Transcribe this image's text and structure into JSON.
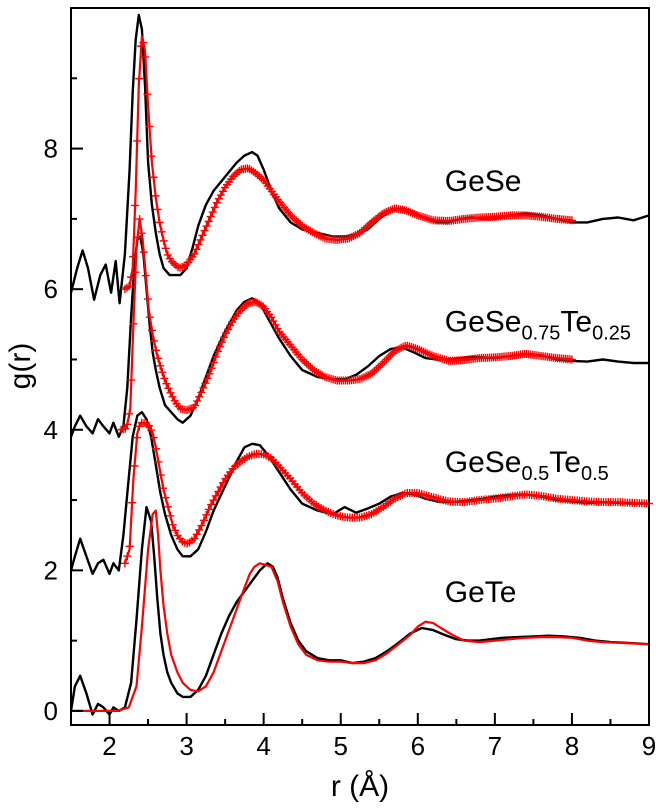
{
  "chart_data": {
    "type": "line",
    "xlabel": "r (Å)",
    "ylabel": "g(r)",
    "xlim": [
      1.5,
      9
    ],
    "ylim": [
      -0.2,
      10
    ],
    "xticks": [
      2,
      3,
      4,
      5,
      6,
      7,
      8,
      9
    ],
    "xtick_labels": [
      "2",
      "3",
      "4",
      "5",
      "6",
      "7",
      "8",
      "9"
    ],
    "yticks": [
      0,
      2,
      4,
      6,
      8
    ],
    "ytick_labels": [
      "0",
      "2",
      "4",
      "6",
      "8"
    ],
    "grid": false,
    "colors": {
      "black_curve": "#000000",
      "red_curve": "#ff0000"
    },
    "annotations": [
      {
        "parts": [
          {
            "t": "GeSe"
          }
        ],
        "x": 6.35,
        "y": 7.4
      },
      {
        "parts": [
          {
            "t": "GeSe"
          },
          {
            "t": "0.75",
            "sub": true
          },
          {
            "t": "Te"
          },
          {
            "t": "0.25",
            "sub": true
          }
        ],
        "x": 6.35,
        "y": 5.4
      },
      {
        "parts": [
          {
            "t": "GeSe"
          },
          {
            "t": "0.5",
            "sub": true
          },
          {
            "t": "Te"
          },
          {
            "t": "0.5",
            "sub": true
          }
        ],
        "x": 6.35,
        "y": 3.4
      },
      {
        "parts": [
          {
            "t": "GeTe"
          }
        ],
        "x": 6.35,
        "y": 1.55
      }
    ],
    "series": [
      {
        "group": "GeSe",
        "color": "#000000",
        "marker": "none",
        "x": [
          1.5,
          1.58,
          1.65,
          1.72,
          1.8,
          1.88,
          1.95,
          2.02,
          2.08,
          2.13,
          2.2,
          2.26,
          2.3,
          2.34,
          2.38,
          2.42,
          2.46,
          2.5,
          2.55,
          2.6,
          2.65,
          2.7,
          2.78,
          2.85,
          2.92,
          3.0,
          3.08,
          3.15,
          3.25,
          3.35,
          3.5,
          3.65,
          3.75,
          3.85,
          3.92,
          4.0,
          4.1,
          4.2,
          4.35,
          4.5,
          4.7,
          4.9,
          5.05,
          5.2,
          5.35,
          5.5,
          5.65,
          5.8,
          5.95,
          6.1,
          6.25,
          6.4,
          6.55,
          6.7,
          6.85,
          7.0,
          7.2,
          7.4,
          7.6,
          7.8,
          8.0,
          8.2,
          8.4,
          8.6,
          8.8,
          9.0
        ],
        "y": [
          5.95,
          6.3,
          6.55,
          6.3,
          5.85,
          6.2,
          6.35,
          5.95,
          6.4,
          5.8,
          6.5,
          7.7,
          8.8,
          9.55,
          9.9,
          9.7,
          8.9,
          7.8,
          7.2,
          6.8,
          6.5,
          6.3,
          6.2,
          6.2,
          6.2,
          6.3,
          6.6,
          6.9,
          7.2,
          7.4,
          7.6,
          7.8,
          7.9,
          7.95,
          7.9,
          7.7,
          7.4,
          7.15,
          6.95,
          6.85,
          6.8,
          6.75,
          6.75,
          6.78,
          6.85,
          7.0,
          7.12,
          7.15,
          7.1,
          7.0,
          6.95,
          6.95,
          7.0,
          7.02,
          7.0,
          7.0,
          7.05,
          7.08,
          7.05,
          7.0,
          6.95,
          6.95,
          7.0,
          7.02,
          6.98,
          7.05
        ]
      },
      {
        "group": "GeSe",
        "color": "#ff0000",
        "marker": "plus",
        "x": [
          2.2,
          2.26,
          2.3,
          2.34,
          2.38,
          2.42,
          2.46,
          2.5,
          2.55,
          2.6,
          2.65,
          2.7,
          2.75,
          2.8,
          2.85,
          2.9,
          2.95,
          3.0,
          3.1,
          3.2,
          3.3,
          3.4,
          3.5,
          3.6,
          3.7,
          3.8,
          3.9,
          4.0,
          4.1,
          4.2,
          4.35,
          4.5,
          4.65,
          4.8,
          4.95,
          5.1,
          5.25,
          5.4,
          5.55,
          5.7,
          5.85,
          6.0,
          6.2,
          6.4,
          6.6,
          6.8,
          7.0,
          7.2,
          7.4,
          7.6,
          7.8,
          8.0
        ],
        "y": [
          6.0,
          6.05,
          6.3,
          7.4,
          8.9,
          9.6,
          9.4,
          8.6,
          7.8,
          7.3,
          6.95,
          6.7,
          6.5,
          6.4,
          6.35,
          6.3,
          6.32,
          6.35,
          6.5,
          6.75,
          7.0,
          7.25,
          7.45,
          7.6,
          7.7,
          7.72,
          7.65,
          7.55,
          7.4,
          7.25,
          7.05,
          6.9,
          6.8,
          6.72,
          6.7,
          6.72,
          6.8,
          6.95,
          7.08,
          7.15,
          7.12,
          7.05,
          6.98,
          6.97,
          7.0,
          7.02,
          7.03,
          7.05,
          7.05,
          7.03,
          7.0,
          6.98
        ]
      },
      {
        "group": "GeSe0.75Te0.25",
        "color": "#000000",
        "marker": "none",
        "x": [
          1.5,
          1.55,
          1.62,
          1.7,
          1.78,
          1.85,
          1.92,
          2.0,
          2.05,
          2.12,
          2.18,
          2.23,
          2.28,
          2.32,
          2.36,
          2.4,
          2.44,
          2.48,
          2.52,
          2.56,
          2.6,
          2.65,
          2.72,
          2.8,
          2.88,
          2.95,
          3.05,
          3.15,
          3.25,
          3.35,
          3.5,
          3.65,
          3.75,
          3.85,
          3.95,
          4.05,
          4.2,
          4.35,
          4.5,
          4.7,
          4.9,
          5.05,
          5.2,
          5.35,
          5.5,
          5.65,
          5.8,
          5.95,
          6.1,
          6.25,
          6.4,
          6.55,
          6.7,
          6.85,
          7.0,
          7.2,
          7.4,
          7.6,
          7.8,
          8.0,
          8.2,
          8.4,
          8.6,
          8.8,
          9.0
        ],
        "y": [
          3.9,
          4.05,
          4.2,
          4.05,
          3.95,
          4.15,
          4.05,
          3.95,
          4.1,
          3.9,
          4.05,
          4.6,
          5.6,
          6.3,
          6.7,
          6.75,
          6.5,
          6.0,
          5.5,
          5.1,
          4.85,
          4.6,
          4.35,
          4.25,
          4.15,
          4.1,
          4.2,
          4.45,
          4.75,
          5.05,
          5.4,
          5.7,
          5.82,
          5.87,
          5.8,
          5.6,
          5.3,
          5.05,
          4.85,
          4.75,
          4.72,
          4.72,
          4.78,
          4.9,
          5.05,
          5.15,
          5.17,
          5.1,
          5.02,
          5.0,
          5.0,
          5.02,
          5.04,
          5.03,
          5.02,
          5.05,
          5.08,
          5.06,
          5.0,
          4.98,
          4.97,
          5.0,
          4.97,
          4.95,
          4.95
        ]
      },
      {
        "group": "GeSe0.75Te0.25",
        "color": "#ff0000",
        "marker": "plus",
        "x": [
          2.15,
          2.22,
          2.27,
          2.31,
          2.35,
          2.39,
          2.43,
          2.47,
          2.51,
          2.56,
          2.61,
          2.66,
          2.72,
          2.78,
          2.85,
          2.92,
          3.0,
          3.1,
          3.2,
          3.3,
          3.4,
          3.5,
          3.6,
          3.7,
          3.8,
          3.9,
          4.0,
          4.1,
          4.2,
          4.35,
          4.5,
          4.65,
          4.8,
          4.95,
          5.1,
          5.25,
          5.4,
          5.55,
          5.7,
          5.85,
          6.0,
          6.2,
          6.4,
          6.6,
          6.8,
          7.0,
          7.2,
          7.4,
          7.6,
          7.8,
          8.0
        ],
        "y": [
          4.0,
          4.02,
          4.3,
          5.5,
          6.6,
          7.0,
          6.7,
          6.2,
          5.7,
          5.35,
          5.1,
          4.9,
          4.7,
          4.55,
          4.4,
          4.3,
          4.28,
          4.32,
          4.55,
          4.8,
          5.1,
          5.35,
          5.55,
          5.7,
          5.8,
          5.82,
          5.75,
          5.6,
          5.4,
          5.2,
          5.0,
          4.85,
          4.75,
          4.7,
          4.7,
          4.72,
          4.8,
          4.95,
          5.12,
          5.2,
          5.15,
          5.05,
          4.98,
          4.99,
          5.02,
          5.03,
          5.05,
          5.08,
          5.05,
          5.02,
          5.0
        ]
      },
      {
        "group": "GeSe0.5Te0.5",
        "color": "#000000",
        "marker": "none",
        "x": [
          1.5,
          1.55,
          1.62,
          1.7,
          1.78,
          1.85,
          1.92,
          2.0,
          2.05,
          2.12,
          2.18,
          2.24,
          2.3,
          2.36,
          2.42,
          2.48,
          2.54,
          2.6,
          2.66,
          2.72,
          2.8,
          2.88,
          2.95,
          3.05,
          3.15,
          3.25,
          3.35,
          3.5,
          3.65,
          3.75,
          3.85,
          3.95,
          4.05,
          4.2,
          4.35,
          4.5,
          4.7,
          4.9,
          5.05,
          5.2,
          5.35,
          5.5,
          5.65,
          5.8,
          5.95,
          6.1,
          6.25,
          6.4,
          6.55,
          6.7,
          6.85,
          7.0,
          7.2,
          7.4,
          7.6,
          7.8,
          8.0,
          8.2,
          8.4,
          8.6,
          8.8,
          9.0
        ],
        "y": [
          2.0,
          2.2,
          2.45,
          2.2,
          1.95,
          2.1,
          2.15,
          1.95,
          2.1,
          2.0,
          2.5,
          3.2,
          3.9,
          4.2,
          4.25,
          4.15,
          3.9,
          3.5,
          3.1,
          2.8,
          2.5,
          2.3,
          2.2,
          2.2,
          2.3,
          2.55,
          2.85,
          3.2,
          3.55,
          3.75,
          3.8,
          3.78,
          3.65,
          3.4,
          3.15,
          2.95,
          2.85,
          2.8,
          2.9,
          2.82,
          2.88,
          2.95,
          3.05,
          3.1,
          3.08,
          3.02,
          2.98,
          2.97,
          2.98,
          3.0,
          3.02,
          3.05,
          3.07,
          3.08,
          3.05,
          3.0,
          2.98,
          2.96,
          2.97,
          2.96,
          2.95,
          2.95
        ]
      },
      {
        "group": "GeSe0.5Te0.5",
        "color": "#ff0000",
        "marker": "plus",
        "x": [
          2.2,
          2.26,
          2.31,
          2.36,
          2.4,
          2.44,
          2.48,
          2.52,
          2.56,
          2.6,
          2.65,
          2.7,
          2.76,
          2.82,
          2.88,
          2.95,
          3.02,
          3.1,
          3.2,
          3.3,
          3.4,
          3.5,
          3.6,
          3.7,
          3.8,
          3.9,
          4.0,
          4.1,
          4.2,
          4.35,
          4.5,
          4.65,
          4.8,
          4.95,
          5.1,
          5.25,
          5.4,
          5.55,
          5.7,
          5.85,
          6.0,
          6.2,
          6.4,
          6.6,
          6.8,
          7.0,
          7.2,
          7.4,
          7.6,
          7.8,
          8.0,
          8.2,
          8.4,
          8.6,
          8.8,
          9.0
        ],
        "y": [
          2.1,
          2.3,
          3.3,
          3.95,
          4.1,
          4.1,
          4.08,
          4.05,
          3.95,
          3.75,
          3.45,
          3.15,
          2.9,
          2.65,
          2.5,
          2.4,
          2.38,
          2.45,
          2.65,
          2.9,
          3.1,
          3.3,
          3.45,
          3.55,
          3.62,
          3.66,
          3.65,
          3.6,
          3.48,
          3.3,
          3.1,
          2.95,
          2.85,
          2.78,
          2.75,
          2.75,
          2.8,
          2.9,
          3.02,
          3.1,
          3.1,
          3.04,
          2.98,
          2.97,
          3.0,
          3.02,
          3.05,
          3.08,
          3.06,
          3.02,
          3.0,
          2.98,
          2.97,
          2.97,
          2.96,
          2.95
        ]
      },
      {
        "group": "GeTe",
        "color": "#000000",
        "marker": "none",
        "x": [
          1.5,
          1.55,
          1.62,
          1.7,
          1.78,
          1.85,
          1.92,
          2.0,
          2.05,
          2.12,
          2.2,
          2.28,
          2.35,
          2.42,
          2.48,
          2.54,
          2.58,
          2.62,
          2.66,
          2.7,
          2.75,
          2.8,
          2.88,
          2.95,
          3.05,
          3.15,
          3.25,
          3.35,
          3.45,
          3.55,
          3.65,
          3.75,
          3.85,
          3.95,
          4.05,
          4.12,
          4.18,
          4.25,
          4.35,
          4.45,
          4.55,
          4.7,
          4.85,
          5.0,
          5.15,
          5.3,
          5.45,
          5.6,
          5.75,
          5.9,
          6.05,
          6.2,
          6.35,
          6.5,
          6.65,
          6.8,
          6.95,
          7.1,
          7.3,
          7.5,
          7.7,
          7.9,
          8.1,
          8.3,
          8.5,
          8.7,
          9.0
        ],
        "y": [
          0.0,
          0.35,
          0.5,
          0.25,
          -0.05,
          0.1,
          0.05,
          -0.05,
          0.05,
          0.0,
          0.05,
          0.4,
          1.3,
          2.3,
          2.9,
          2.7,
          2.2,
          1.6,
          1.1,
          0.8,
          0.55,
          0.4,
          0.25,
          0.2,
          0.2,
          0.3,
          0.5,
          0.8,
          1.1,
          1.35,
          1.55,
          1.7,
          1.85,
          2.0,
          2.1,
          2.05,
          1.9,
          1.6,
          1.25,
          1.0,
          0.85,
          0.75,
          0.72,
          0.72,
          0.68,
          0.7,
          0.75,
          0.85,
          0.97,
          1.1,
          1.18,
          1.15,
          1.08,
          1.02,
          1.0,
          1.0,
          1.02,
          1.04,
          1.05,
          1.06,
          1.07,
          1.06,
          1.04,
          1.0,
          0.98,
          0.97,
          0.95
        ]
      },
      {
        "group": "GeTe",
        "color": "#ff0000",
        "marker": "none",
        "x": [
          1.5,
          1.8,
          2.1,
          2.25,
          2.35,
          2.42,
          2.5,
          2.56,
          2.6,
          2.63,
          2.66,
          2.7,
          2.75,
          2.8,
          2.88,
          2.95,
          3.05,
          3.15,
          3.25,
          3.35,
          3.45,
          3.55,
          3.65,
          3.75,
          3.82,
          3.88,
          3.95,
          4.02,
          4.1,
          4.18,
          4.25,
          4.35,
          4.45,
          4.55,
          4.7,
          4.85,
          5.0,
          5.15,
          5.3,
          5.45,
          5.6,
          5.75,
          5.9,
          6.0,
          6.1,
          6.2,
          6.3,
          6.45,
          6.6,
          6.8,
          7.0,
          7.2,
          7.4,
          7.6,
          7.8,
          8.0,
          8.2,
          8.4,
          8.6,
          8.8,
          9.0
        ],
        "y": [
          0.0,
          0.0,
          0.0,
          0.05,
          0.35,
          1.2,
          2.3,
          2.8,
          2.85,
          2.5,
          2.0,
          1.5,
          1.1,
          0.8,
          0.55,
          0.4,
          0.3,
          0.28,
          0.35,
          0.55,
          0.85,
          1.15,
          1.45,
          1.75,
          1.95,
          2.05,
          2.1,
          2.08,
          2.05,
          1.85,
          1.55,
          1.2,
          0.95,
          0.8,
          0.72,
          0.7,
          0.7,
          0.68,
          0.68,
          0.72,
          0.82,
          0.95,
          1.08,
          1.2,
          1.27,
          1.25,
          1.18,
          1.08,
          1.0,
          0.98,
          1.0,
          1.02,
          1.04,
          1.05,
          1.05,
          1.04,
          1.0,
          0.98,
          0.97,
          0.96,
          0.95
        ]
      }
    ]
  }
}
